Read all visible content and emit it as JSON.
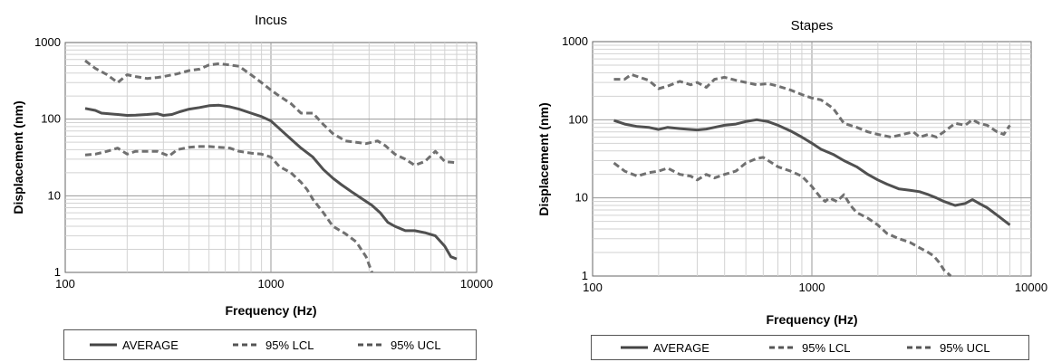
{
  "chart_data": [
    {
      "type": "line",
      "title": "Incus",
      "xlabel": "Frequency (Hz)",
      "ylabel": "Displacement (nm)",
      "xscale": "log",
      "yscale": "log",
      "xlim": [
        100,
        10000
      ],
      "ylim": [
        1,
        1000
      ],
      "x_ticks": [
        "100",
        "1000",
        "10000"
      ],
      "y_ticks": [
        "1",
        "10",
        "100",
        "1000"
      ],
      "grid": true,
      "legend_position": "bottom",
      "series": [
        {
          "name": "AVERAGE",
          "style": "solid",
          "points": [
            [
              125,
              138
            ],
            [
              140,
              130
            ],
            [
              150,
              120
            ],
            [
              180,
              115
            ],
            [
              200,
              112
            ],
            [
              220,
              113
            ],
            [
              250,
              115
            ],
            [
              280,
              118
            ],
            [
              300,
              112
            ],
            [
              330,
              115
            ],
            [
              360,
              125
            ],
            [
              400,
              135
            ],
            [
              450,
              142
            ],
            [
              500,
              150
            ],
            [
              560,
              152
            ],
            [
              630,
              145
            ],
            [
              700,
              135
            ],
            [
              800,
              120
            ],
            [
              900,
              108
            ],
            [
              1000,
              95
            ],
            [
              1100,
              75
            ],
            [
              1250,
              55
            ],
            [
              1400,
              42
            ],
            [
              1600,
              32
            ],
            [
              1800,
              22
            ],
            [
              2000,
              17
            ],
            [
              2200,
              14
            ],
            [
              2500,
              11
            ],
            [
              2800,
              9
            ],
            [
              3100,
              7.5
            ],
            [
              3400,
              6
            ],
            [
              3700,
              4.5
            ],
            [
              4000,
              4
            ],
            [
              4500,
              3.5
            ],
            [
              5000,
              3.5
            ],
            [
              5600,
              3.3
            ],
            [
              6300,
              3
            ],
            [
              7000,
              2.2
            ],
            [
              7500,
              1.6
            ],
            [
              8000,
              1.5
            ]
          ]
        },
        {
          "name": "95% LCL",
          "style": "dashed",
          "points": [
            [
              125,
              34
            ],
            [
              140,
              35
            ],
            [
              160,
              38
            ],
            [
              180,
              42
            ],
            [
              200,
              35
            ],
            [
              220,
              38
            ],
            [
              250,
              38
            ],
            [
              280,
              38
            ],
            [
              320,
              33
            ],
            [
              350,
              40
            ],
            [
              400,
              43
            ],
            [
              450,
              44
            ],
            [
              500,
              44
            ],
            [
              560,
              43
            ],
            [
              630,
              42
            ],
            [
              700,
              38
            ],
            [
              800,
              36
            ],
            [
              900,
              35
            ],
            [
              1000,
              32
            ],
            [
              1100,
              24
            ],
            [
              1250,
              20
            ],
            [
              1400,
              15
            ],
            [
              1500,
              12
            ],
            [
              1600,
              9
            ],
            [
              1800,
              6
            ],
            [
              2000,
              4
            ],
            [
              2300,
              3.2
            ],
            [
              2600,
              2.5
            ],
            [
              2900,
              1.6
            ],
            [
              3100,
              1.0
            ]
          ]
        },
        {
          "name": "95% UCL",
          "style": "dashed",
          "points": [
            [
              125,
              580
            ],
            [
              140,
              460
            ],
            [
              160,
              380
            ],
            [
              180,
              300
            ],
            [
              200,
              380
            ],
            [
              220,
              360
            ],
            [
              250,
              340
            ],
            [
              280,
              350
            ],
            [
              300,
              360
            ],
            [
              350,
              390
            ],
            [
              400,
              430
            ],
            [
              450,
              450
            ],
            [
              500,
              510
            ],
            [
              560,
              530
            ],
            [
              630,
              510
            ],
            [
              700,
              490
            ],
            [
              800,
              380
            ],
            [
              900,
              300
            ],
            [
              1000,
              240
            ],
            [
              1100,
              200
            ],
            [
              1250,
              160
            ],
            [
              1400,
              120
            ],
            [
              1600,
              120
            ],
            [
              1800,
              85
            ],
            [
              2000,
              65
            ],
            [
              2300,
              52
            ],
            [
              2600,
              50
            ],
            [
              2900,
              48
            ],
            [
              3300,
              52
            ],
            [
              3600,
              45
            ],
            [
              4000,
              35
            ],
            [
              4500,
              30
            ],
            [
              5000,
              25
            ],
            [
              5600,
              28
            ],
            [
              6300,
              38
            ],
            [
              7000,
              28
            ],
            [
              8000,
              27
            ]
          ]
        }
      ]
    },
    {
      "type": "line",
      "title": "Stapes",
      "xlabel": "Frequency (Hz)",
      "ylabel": "Displacement (nm)",
      "xscale": "log",
      "yscale": "log",
      "xlim": [
        100,
        10000
      ],
      "ylim": [
        1,
        1000
      ],
      "x_ticks": [
        "100",
        "1000",
        "10000"
      ],
      "y_ticks": [
        "1",
        "10",
        "100",
        "1000"
      ],
      "grid": true,
      "legend_position": "bottom",
      "series": [
        {
          "name": "AVERAGE",
          "style": "solid",
          "points": [
            [
              125,
              98
            ],
            [
              140,
              88
            ],
            [
              160,
              82
            ],
            [
              180,
              80
            ],
            [
              200,
              75
            ],
            [
              220,
              80
            ],
            [
              250,
              77
            ],
            [
              280,
              75
            ],
            [
              300,
              74
            ],
            [
              330,
              76
            ],
            [
              360,
              80
            ],
            [
              400,
              85
            ],
            [
              450,
              88
            ],
            [
              500,
              95
            ],
            [
              560,
              100
            ],
            [
              630,
              95
            ],
            [
              700,
              85
            ],
            [
              800,
              72
            ],
            [
              900,
              60
            ],
            [
              1000,
              50
            ],
            [
              1100,
              42
            ],
            [
              1250,
              36
            ],
            [
              1400,
              30
            ],
            [
              1600,
              25
            ],
            [
              1800,
              20
            ],
            [
              2000,
              17
            ],
            [
              2200,
              15
            ],
            [
              2500,
              13
            ],
            [
              2800,
              12.5
            ],
            [
              3100,
              12
            ],
            [
              3400,
              11
            ],
            [
              3700,
              10
            ],
            [
              4000,
              9
            ],
            [
              4500,
              8
            ],
            [
              5000,
              8.5
            ],
            [
              5400,
              9.5
            ],
            [
              5800,
              8.5
            ],
            [
              6300,
              7.5
            ],
            [
              7000,
              6
            ],
            [
              8000,
              4.5
            ]
          ]
        },
        {
          "name": "95% LCL",
          "style": "dashed",
          "points": [
            [
              125,
              28
            ],
            [
              140,
              22
            ],
            [
              160,
              19
            ],
            [
              180,
              21
            ],
            [
              200,
              22
            ],
            [
              220,
              24
            ],
            [
              250,
              20
            ],
            [
              280,
              19
            ],
            [
              300,
              17
            ],
            [
              330,
              20
            ],
            [
              360,
              18
            ],
            [
              400,
              20
            ],
            [
              450,
              22
            ],
            [
              500,
              28
            ],
            [
              560,
              32
            ],
            [
              600,
              33
            ],
            [
              700,
              25
            ],
            [
              800,
              22
            ],
            [
              900,
              19
            ],
            [
              1000,
              14
            ],
            [
              1100,
              10
            ],
            [
              1150,
              9
            ],
            [
              1200,
              10
            ],
            [
              1300,
              9
            ],
            [
              1400,
              11
            ],
            [
              1500,
              8
            ],
            [
              1600,
              6.5
            ],
            [
              1800,
              5.5
            ],
            [
              2000,
              4.5
            ],
            [
              2200,
              3.5
            ],
            [
              2500,
              3
            ],
            [
              2800,
              2.7
            ],
            [
              3100,
              2.3
            ],
            [
              3400,
              2
            ],
            [
              3600,
              1.8
            ],
            [
              3800,
              1.5
            ],
            [
              4000,
              1.2
            ],
            [
              4300,
              1.0
            ]
          ]
        },
        {
          "name": "95% UCL",
          "style": "dashed",
          "points": [
            [
              125,
              330
            ],
            [
              140,
              330
            ],
            [
              150,
              380
            ],
            [
              180,
              320
            ],
            [
              200,
              250
            ],
            [
              220,
              270
            ],
            [
              250,
              310
            ],
            [
              280,
              280
            ],
            [
              300,
              300
            ],
            [
              330,
              260
            ],
            [
              360,
              330
            ],
            [
              400,
              350
            ],
            [
              450,
              320
            ],
            [
              500,
              300
            ],
            [
              560,
              280
            ],
            [
              630,
              290
            ],
            [
              700,
              270
            ],
            [
              800,
              240
            ],
            [
              900,
              210
            ],
            [
              1000,
              190
            ],
            [
              1100,
              180
            ],
            [
              1250,
              140
            ],
            [
              1400,
              90
            ],
            [
              1600,
              80
            ],
            [
              1800,
              70
            ],
            [
              2000,
              65
            ],
            [
              2300,
              60
            ],
            [
              2600,
              65
            ],
            [
              2900,
              70
            ],
            [
              3100,
              60
            ],
            [
              3400,
              65
            ],
            [
              3700,
              60
            ],
            [
              4000,
              70
            ],
            [
              4500,
              90
            ],
            [
              5000,
              85
            ],
            [
              5400,
              100
            ],
            [
              5800,
              90
            ],
            [
              6300,
              85
            ],
            [
              7000,
              70
            ],
            [
              7500,
              65
            ],
            [
              8000,
              85
            ]
          ]
        }
      ]
    }
  ]
}
